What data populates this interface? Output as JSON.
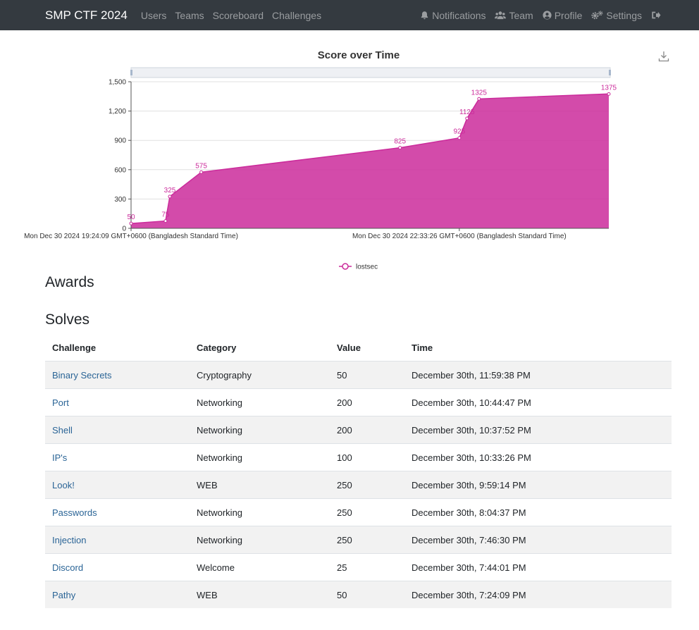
{
  "navbar": {
    "brand": "SMP CTF 2024",
    "links": [
      "Users",
      "Teams",
      "Scoreboard",
      "Challenges"
    ],
    "right_links": [
      {
        "label": "Notifications",
        "icon": "bell-icon"
      },
      {
        "label": "Team",
        "icon": "users-icon"
      },
      {
        "label": "Profile",
        "icon": "user-circle-icon"
      },
      {
        "label": "Settings",
        "icon": "cogs-icon"
      },
      {
        "label": "",
        "icon": "logout-icon"
      }
    ]
  },
  "chart_data": {
    "type": "area",
    "title": "Score over Time",
    "x_tick_labels": [
      "Mon Dec 30 2024 19:24:09 GMT+0600 (Bangladesh Standard Time)",
      "Mon Dec 30 2024 22:33:26 GMT+0600 (Bangladesh Standard Time)"
    ],
    "x": [
      "Mon Dec 30 2024 19:24:09 GMT+0600",
      "Mon Dec 30 2024 19:44:01 GMT+0600",
      "Mon Dec 30 2024 19:46:30 GMT+0600",
      "Mon Dec 30 2024 20:04:37 GMT+0600",
      "Mon Dec 30 2024 21:59:14 GMT+0600",
      "Mon Dec 30 2024 22:33:26 GMT+0600",
      "Mon Dec 30 2024 22:37:52 GMT+0600",
      "Mon Dec 30 2024 22:44:47 GMT+0600",
      "Mon Dec 30 2024 23:59:38 GMT+0600"
    ],
    "series": [
      {
        "name": "lostsec",
        "values": [
          50,
          75,
          325,
          575,
          825,
          925,
          1125,
          1325,
          1375
        ]
      }
    ],
    "ylim": [
      0,
      1500
    ],
    "yticks": [
      0,
      300,
      600,
      900,
      1200,
      1500
    ],
    "ytick_labels": [
      "0",
      "300",
      "600",
      "900",
      "1,200",
      "1,500"
    ],
    "grid": true,
    "legend_position": "bottom",
    "color": "#cb2b9b"
  },
  "awards": {
    "title": "Awards"
  },
  "solves": {
    "title": "Solves",
    "headers": [
      "Challenge",
      "Category",
      "Value",
      "Time"
    ],
    "rows": [
      {
        "challenge": "Binary Secrets",
        "category": "Cryptography",
        "value": "50",
        "time": "December 30th, 11:59:38 PM"
      },
      {
        "challenge": "Port",
        "category": "Networking",
        "value": "200",
        "time": "December 30th, 10:44:47 PM"
      },
      {
        "challenge": "Shell",
        "category": "Networking",
        "value": "200",
        "time": "December 30th, 10:37:52 PM"
      },
      {
        "challenge": "IP's",
        "category": "Networking",
        "value": "100",
        "time": "December 30th, 10:33:26 PM"
      },
      {
        "challenge": "Look!",
        "category": "WEB",
        "value": "250",
        "time": "December 30th, 9:59:14 PM"
      },
      {
        "challenge": "Passwords",
        "category": "Networking",
        "value": "250",
        "time": "December 30th, 8:04:37 PM"
      },
      {
        "challenge": "Injection",
        "category": "Networking",
        "value": "250",
        "time": "December 30th, 7:46:30 PM"
      },
      {
        "challenge": "Discord",
        "category": "Welcome",
        "value": "25",
        "time": "December 30th, 7:44:01 PM"
      },
      {
        "challenge": "Pathy",
        "category": "WEB",
        "value": "50",
        "time": "December 30th, 7:24:09 PM"
      }
    ]
  }
}
